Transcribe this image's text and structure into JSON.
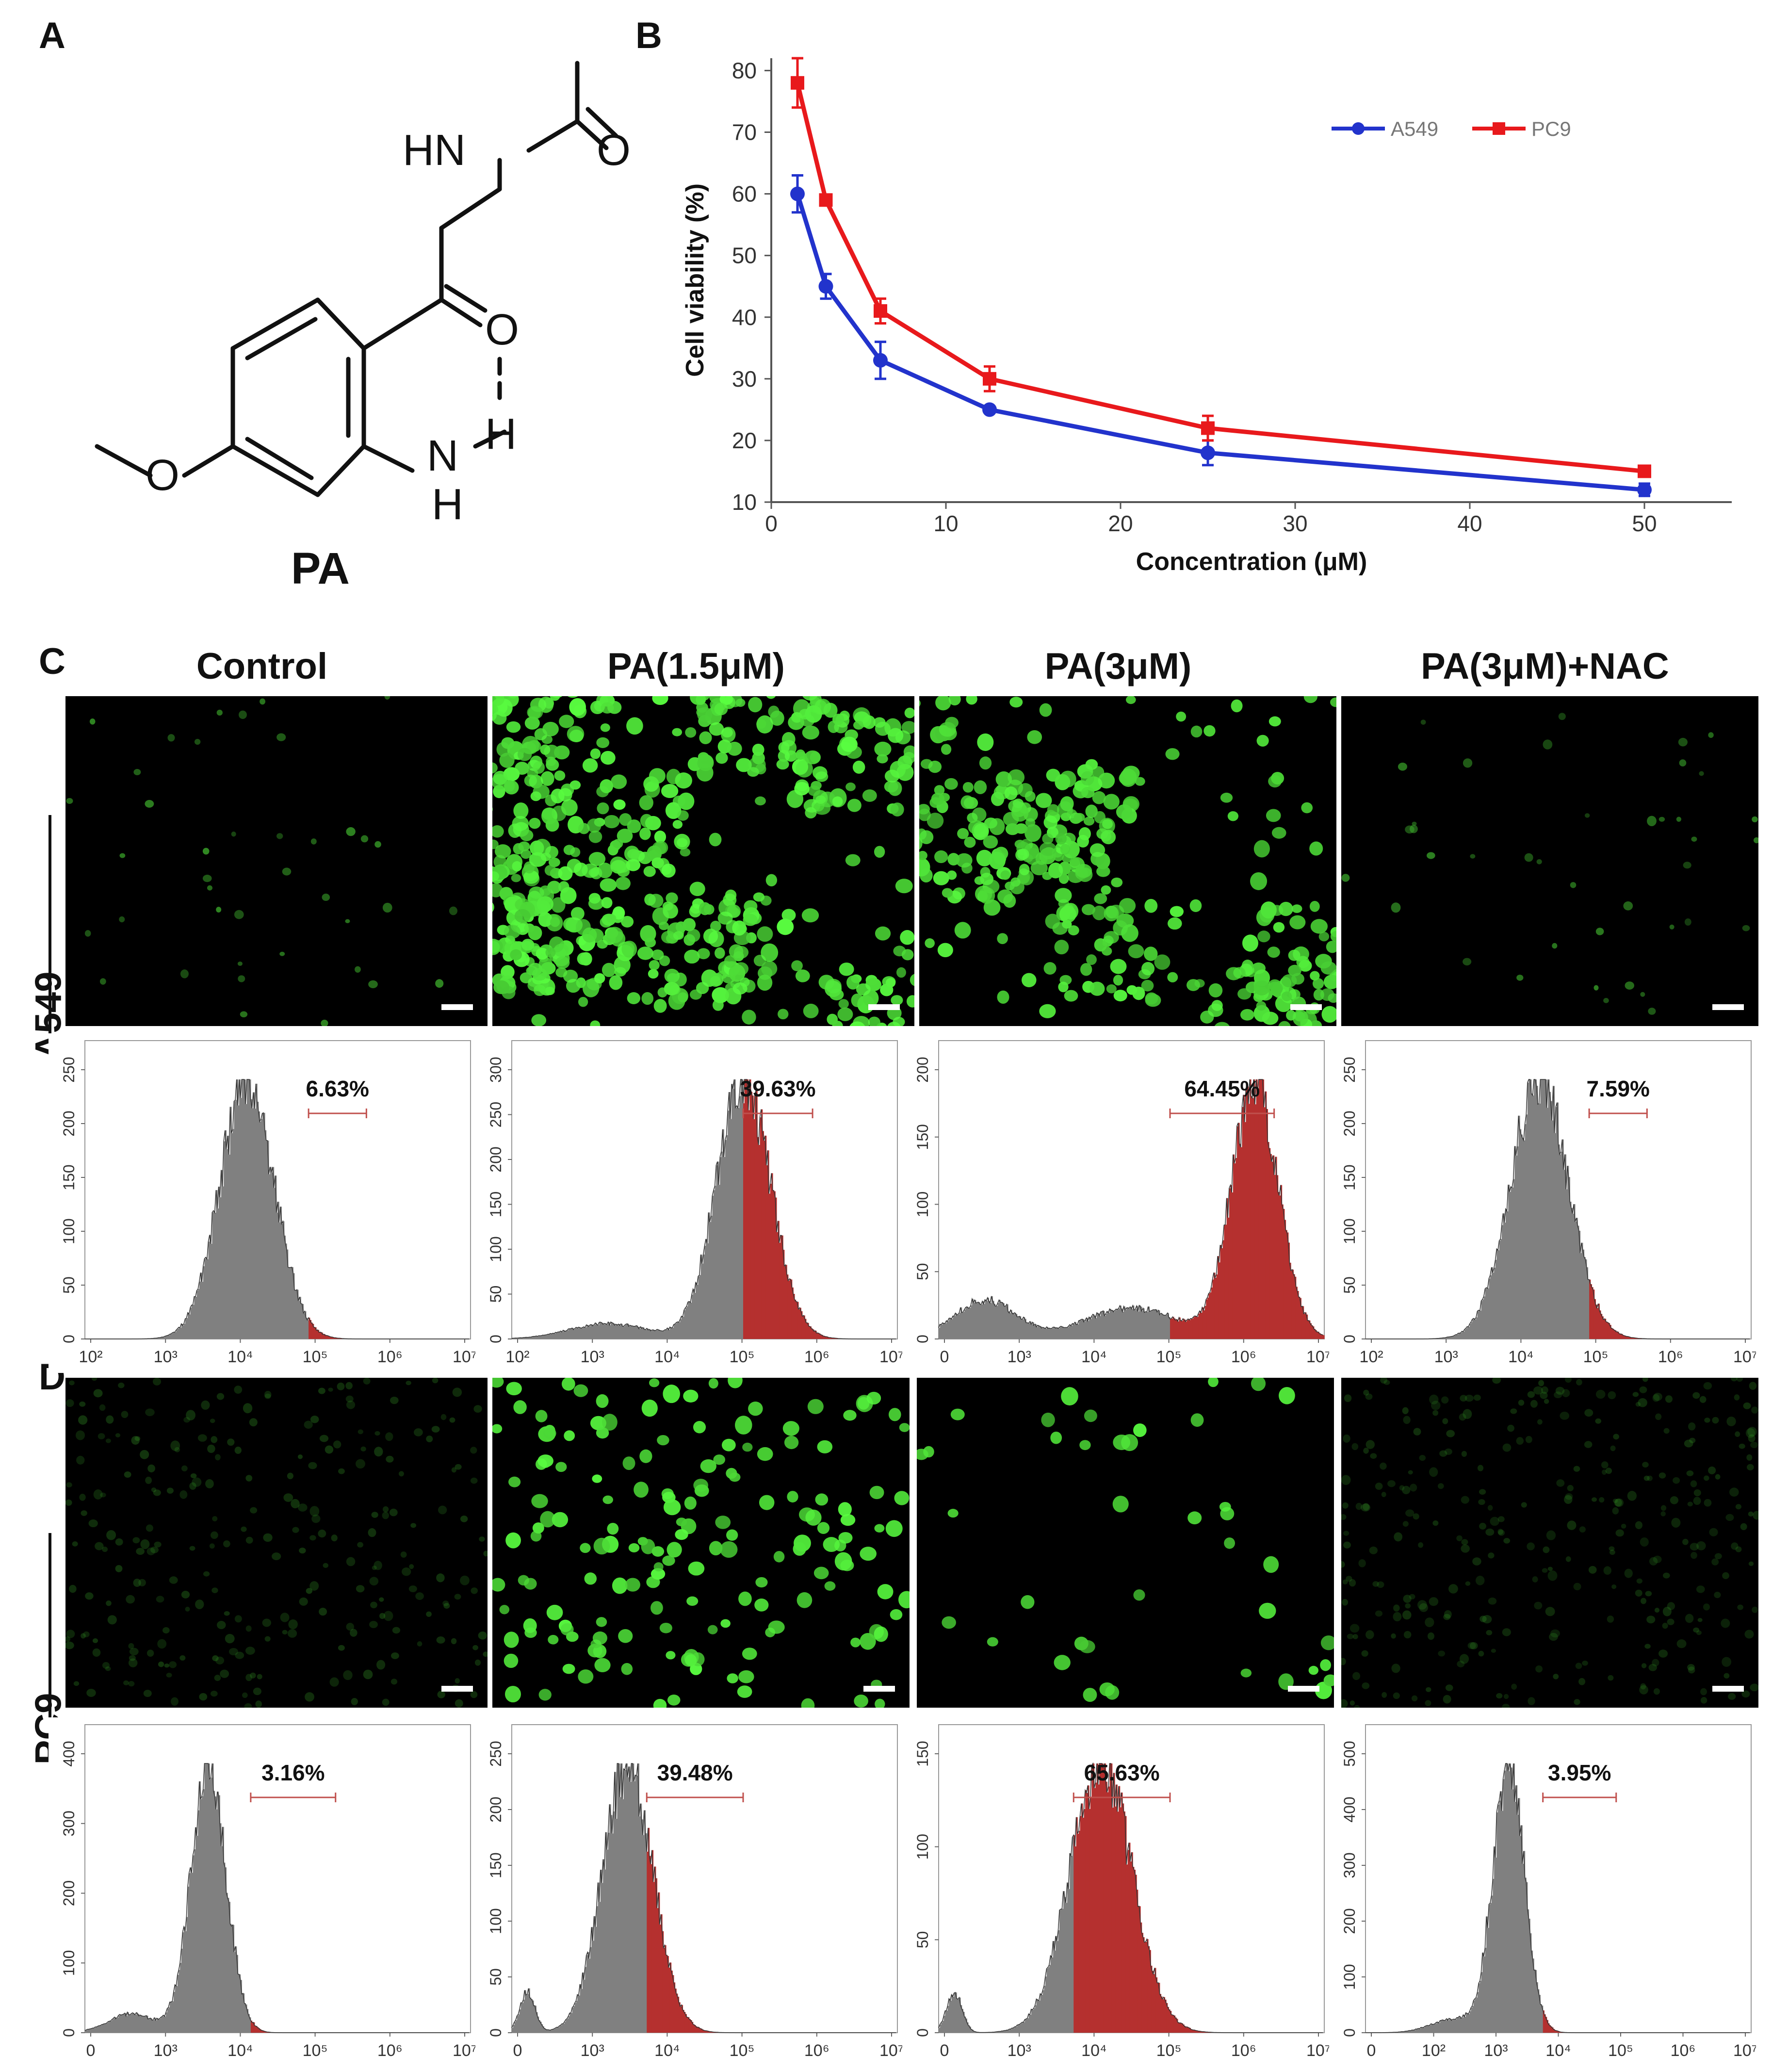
{
  "panels": {
    "A": {
      "label": "A",
      "compound_label": "PA",
      "atoms": [
        "HN",
        "O",
        "O",
        "H",
        "N",
        "H",
        "O"
      ]
    },
    "B": {
      "label": "B"
    },
    "C": {
      "label": "C",
      "row_label": "A549"
    },
    "D": {
      "label": "D",
      "row_label": "PC9"
    }
  },
  "columns": [
    "Control",
    "PA(1.5μM)",
    "PA(3μM)",
    "PA(3μM)+NAC"
  ],
  "chart_data": [
    {
      "type": "line",
      "xlabel": "Concentration (μM)",
      "ylabel": "Cell viability (%)",
      "xlim": [
        0,
        55
      ],
      "ylim": [
        10,
        82
      ],
      "xticks": [
        0,
        10,
        20,
        30,
        40,
        50
      ],
      "yticks": [
        10,
        20,
        30,
        40,
        50,
        60,
        70,
        80
      ],
      "legend_position": "top-right",
      "series": [
        {
          "name": "A549",
          "color": "#2233cc",
          "x": [
            1.5,
            3.125,
            6.25,
            12.5,
            25,
            50
          ],
          "y": [
            60,
            45,
            33,
            25,
            18,
            12
          ],
          "err": [
            3,
            2,
            3,
            0.5,
            2,
            1
          ]
        },
        {
          "name": "PC9",
          "color": "#e8191c",
          "x": [
            1.5,
            3.125,
            6.25,
            12.5,
            25,
            50
          ],
          "y": [
            78,
            59,
            41,
            30,
            22,
            15
          ],
          "err": [
            4,
            0.5,
            2,
            2,
            2,
            0.5
          ]
        }
      ]
    }
  ],
  "histograms": {
    "A549": [
      {
        "percent": "6.63%",
        "yticks": [
          "0",
          "50",
          "100",
          "150",
          "200",
          "250"
        ],
        "xticks": [
          "10²",
          "10³",
          "10⁴",
          "10⁵",
          "10⁶",
          "10⁷"
        ],
        "peak": 0.42,
        "width": 0.07,
        "gate": [
          0.58,
          0.73
        ],
        "redStart": 0.58
      },
      {
        "percent": "39.63%",
        "yticks": [
          "0",
          "50",
          "100",
          "150",
          "200",
          "250",
          "300"
        ],
        "xticks": [
          "10²",
          "10³",
          "10⁴",
          "10⁵",
          "10⁶",
          "10⁷"
        ],
        "peak": 0.6,
        "width": 0.07,
        "gate": [
          0.6,
          0.78
        ],
        "redStart": 0.6
      },
      {
        "percent": "64.45%",
        "yticks": [
          "0",
          "50",
          "100",
          "150",
          "200"
        ],
        "xticks": [
          "0",
          "10³",
          "10⁴",
          "10⁵",
          "10⁶",
          "10⁷"
        ],
        "peak": 0.82,
        "width": 0.06,
        "gate": [
          0.6,
          0.87
        ],
        "redStart": 0.6
      },
      {
        "percent": "7.59%",
        "yticks": [
          "0",
          "50",
          "100",
          "150",
          "200",
          "250"
        ],
        "xticks": [
          "10²",
          "10³",
          "10⁴",
          "10⁵",
          "10⁶",
          "10⁷"
        ],
        "peak": 0.45,
        "width": 0.075,
        "gate": [
          0.58,
          0.73
        ],
        "redStart": 0.58
      }
    ],
    "PC9": [
      {
        "percent": "3.16%",
        "yticks": [
          "0",
          "100",
          "200",
          "300",
          "400"
        ],
        "xticks": [
          "0",
          "10³",
          "10⁴",
          "10⁵",
          "10⁶",
          "10⁷"
        ],
        "peak": 0.32,
        "width": 0.045,
        "gate": [
          0.43,
          0.65
        ],
        "redStart": 0.43
      },
      {
        "percent": "39.48%",
        "yticks": [
          "0",
          "50",
          "100",
          "150",
          "200",
          "250"
        ],
        "xticks": [
          "0",
          "10³",
          "10⁴",
          "10⁵",
          "10⁶",
          "10⁷"
        ],
        "peak": 0.3,
        "width": 0.065,
        "gate": [
          0.35,
          0.6
        ],
        "redStart": 0.35
      },
      {
        "percent": "65.63%",
        "yticks": [
          "0",
          "50",
          "100",
          "150"
        ],
        "xticks": [
          "0",
          "10³",
          "10⁴",
          "10⁵",
          "10⁶",
          "10⁷"
        ],
        "peak": 0.42,
        "width": 0.08,
        "gate": [
          0.35,
          0.6
        ],
        "redStart": 0.35
      },
      {
        "percent": "3.95%",
        "yticks": [
          "0",
          "100",
          "200",
          "300",
          "400",
          "500"
        ],
        "xticks": [
          "0",
          "10²",
          "10³",
          "10⁴",
          "10⁵",
          "10⁶",
          "10⁷"
        ],
        "peak": 0.37,
        "width": 0.04,
        "gate": [
          0.46,
          0.65
        ],
        "redStart": 0.46
      }
    ]
  },
  "microscopy": {
    "A549": [
      {
        "density": 40,
        "intensity": 0.6,
        "cluster": false
      },
      {
        "density": 700,
        "intensity": 1.0,
        "cluster": true
      },
      {
        "density": 420,
        "intensity": 0.95,
        "cluster": true
      },
      {
        "density": 40,
        "intensity": 0.55,
        "cluster": false
      }
    ],
    "PC9": [
      {
        "density": 260,
        "intensity": 0.22,
        "cluster": false
      },
      {
        "density": 170,
        "intensity": 1.0,
        "cluster": false
      },
      {
        "density": 40,
        "intensity": 0.95,
        "cluster": false
      },
      {
        "density": 320,
        "intensity": 0.18,
        "cluster": false
      }
    ]
  }
}
